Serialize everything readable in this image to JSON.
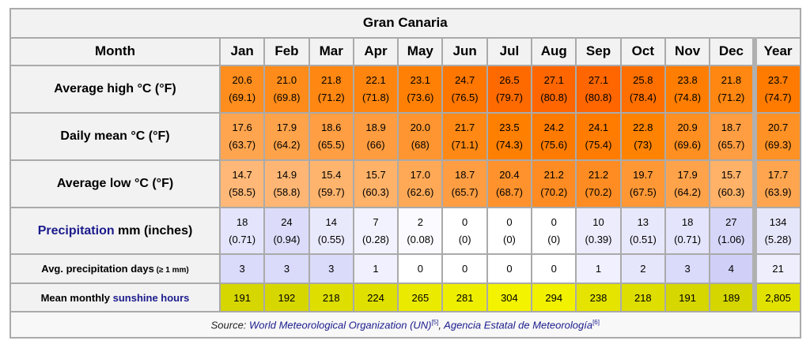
{
  "title": "Gran Canaria",
  "header": {
    "month_label": "Month",
    "columns": [
      "Jan",
      "Feb",
      "Mar",
      "Apr",
      "May",
      "Jun",
      "Jul",
      "Aug",
      "Sep",
      "Oct",
      "Nov",
      "Dec",
      "Year"
    ]
  },
  "rows": {
    "avg_high": {
      "label": "Average high °C (°F)",
      "c": [
        "20.6",
        "21.0",
        "21.8",
        "22.1",
        "23.1",
        "24.7",
        "26.5",
        "27.1",
        "27.1",
        "25.8",
        "23.8",
        "21.8",
        "23.7"
      ],
      "f": [
        "(69.1)",
        "(69.8)",
        "(71.2)",
        "(71.8)",
        "(73.6)",
        "(76.5)",
        "(79.7)",
        "(80.8)",
        "(80.8)",
        "(78.4)",
        "(74.8)",
        "(71.2)",
        "(74.7)"
      ],
      "colors": [
        "#ff8e1e",
        "#ff8c1a",
        "#ff8712",
        "#ff850f",
        "#ff8004",
        "#ff7600",
        "#ff6a00",
        "#ff6600",
        "#ff6600",
        "#ff6f00",
        "#ff7d00",
        "#ff8712",
        "#ff7b00"
      ]
    },
    "daily_mean": {
      "label": "Daily mean °C (°F)",
      "c": [
        "17.6",
        "17.9",
        "18.6",
        "18.9",
        "20.0",
        "21.7",
        "23.5",
        "24.2",
        "24.1",
        "22.8",
        "20.9",
        "18.7",
        "20.7"
      ],
      "f": [
        "(63.7)",
        "(64.2)",
        "(65.5)",
        "(66)",
        "(68)",
        "(71.1)",
        "(74.3)",
        "(75.6)",
        "(75.4)",
        "(73)",
        "(69.6)",
        "(65.7)",
        "(69.3)"
      ],
      "colors": [
        "#ffa550",
        "#ffa34b",
        "#ff9e43",
        "#ff9c3f",
        "#ff9530",
        "#ff8914",
        "#ff7f01",
        "#ff7b00",
        "#ff7c00",
        "#ff8300",
        "#ff8f20",
        "#ff9d42",
        "#ff9125"
      ]
    },
    "avg_low": {
      "label": "Average low °C (°F)",
      "c": [
        "14.7",
        "14.9",
        "15.4",
        "15.7",
        "17.0",
        "18.7",
        "20.4",
        "21.2",
        "21.2",
        "19.7",
        "17.9",
        "15.7",
        "17.7"
      ],
      "f": [
        "(58.5)",
        "(58.8)",
        "(59.7)",
        "(60.3)",
        "(62.6)",
        "(65.7)",
        "(68.7)",
        "(70.2)",
        "(70.2)",
        "(67.5)",
        "(64.2)",
        "(60.3)",
        "(63.9)"
      ],
      "colors": [
        "#ffb877",
        "#ffb674",
        "#ffb46d",
        "#ffb268",
        "#ffa957",
        "#ff9d42",
        "#ff922d",
        "#ff8c22",
        "#ff8c22",
        "#ff9735",
        "#ffa34b",
        "#ffb268",
        "#ffa54f"
      ]
    },
    "precip": {
      "label_link": "Precipitation",
      "label_rest": " mm (inches)",
      "mm": [
        "18",
        "24",
        "14",
        "7",
        "2",
        "0",
        "0",
        "0",
        "10",
        "13",
        "18",
        "27",
        "134"
      ],
      "in": [
        "(0.71)",
        "(0.94)",
        "(0.55)",
        "(0.28)",
        "(0.08)",
        "(0)",
        "(0)",
        "(0)",
        "(0.39)",
        "(0.51)",
        "(0.71)",
        "(1.06)",
        "(5.28)"
      ],
      "colors": [
        "#e4e4fc",
        "#dcdcfa",
        "#e9e9fc",
        "#f2f2fe",
        "#fafaff",
        "#ffffff",
        "#ffffff",
        "#ffffff",
        "#ececfd",
        "#e8e8fc",
        "#e4e4fc",
        "#d6d6f8",
        "#e6e6fb"
      ]
    },
    "precip_days": {
      "label": "Avg. precipitation days",
      "label_unit": " (≥ 1 mm)",
      "values": [
        "3",
        "3",
        "3",
        "1",
        "0",
        "0",
        "0",
        "0",
        "1",
        "2",
        "3",
        "4",
        "21"
      ],
      "colors": [
        "#dadafa",
        "#dadafa",
        "#dadafa",
        "#f0f0fe",
        "#ffffff",
        "#ffffff",
        "#ffffff",
        "#ffffff",
        "#f0f0fe",
        "#e5e5fb",
        "#dadafa",
        "#cfcff7",
        "#eeeefd"
      ]
    },
    "sunshine": {
      "label_prefix": "Mean monthly ",
      "label_link": "sunshine hours",
      "values": [
        "191",
        "192",
        "218",
        "224",
        "265",
        "281",
        "304",
        "294",
        "238",
        "218",
        "191",
        "189",
        "2,805"
      ],
      "colors": [
        "#d6d600",
        "#d7d700",
        "#dede00",
        "#e0e000",
        "#eaea00",
        "#eeee00",
        "#f3f300",
        "#f1f100",
        "#e4e400",
        "#dede00",
        "#d6d600",
        "#d5d500",
        "#e2e200"
      ]
    }
  },
  "source": {
    "prefix": "Source: ",
    "link1": "World Meteorological Organization (UN)",
    "ref1": "[5]",
    "sep": ", ",
    "link2": "Agencia Estatal de Meteorología",
    "ref2": "[6]"
  },
  "chart_data": {
    "type": "table",
    "title": "Gran Canaria",
    "categories": [
      "Jan",
      "Feb",
      "Mar",
      "Apr",
      "May",
      "Jun",
      "Jul",
      "Aug",
      "Sep",
      "Oct",
      "Nov",
      "Dec",
      "Year"
    ],
    "series": [
      {
        "name": "Average high °C",
        "values": [
          20.6,
          21.0,
          21.8,
          22.1,
          23.1,
          24.7,
          26.5,
          27.1,
          27.1,
          25.8,
          23.8,
          21.8,
          23.7
        ]
      },
      {
        "name": "Average high °F",
        "values": [
          69.1,
          69.8,
          71.2,
          71.8,
          73.6,
          76.5,
          79.7,
          80.8,
          80.8,
          78.4,
          74.8,
          71.2,
          74.7
        ]
      },
      {
        "name": "Daily mean °C",
        "values": [
          17.6,
          17.9,
          18.6,
          18.9,
          20.0,
          21.7,
          23.5,
          24.2,
          24.1,
          22.8,
          20.9,
          18.7,
          20.7
        ]
      },
      {
        "name": "Daily mean °F",
        "values": [
          63.7,
          64.2,
          65.5,
          66,
          68,
          71.1,
          74.3,
          75.6,
          75.4,
          73,
          69.6,
          65.7,
          69.3
        ]
      },
      {
        "name": "Average low °C",
        "values": [
          14.7,
          14.9,
          15.4,
          15.7,
          17.0,
          18.7,
          20.4,
          21.2,
          21.2,
          19.7,
          17.9,
          15.7,
          17.7
        ]
      },
      {
        "name": "Average low °F",
        "values": [
          58.5,
          58.8,
          59.7,
          60.3,
          62.6,
          65.7,
          68.7,
          70.2,
          70.2,
          67.5,
          64.2,
          60.3,
          63.9
        ]
      },
      {
        "name": "Precipitation mm",
        "values": [
          18,
          24,
          14,
          7,
          2,
          0,
          0,
          0,
          10,
          13,
          18,
          27,
          134
        ]
      },
      {
        "name": "Precipitation inches",
        "values": [
          0.71,
          0.94,
          0.55,
          0.28,
          0.08,
          0,
          0,
          0,
          0.39,
          0.51,
          0.71,
          1.06,
          5.28
        ]
      },
      {
        "name": "Avg. precipitation days (≥ 1 mm)",
        "values": [
          3,
          3,
          3,
          1,
          0,
          0,
          0,
          0,
          1,
          2,
          3,
          4,
          21
        ]
      },
      {
        "name": "Mean monthly sunshine hours",
        "values": [
          191,
          192,
          218,
          224,
          265,
          281,
          304,
          294,
          238,
          218,
          191,
          189,
          2805
        ]
      }
    ]
  }
}
